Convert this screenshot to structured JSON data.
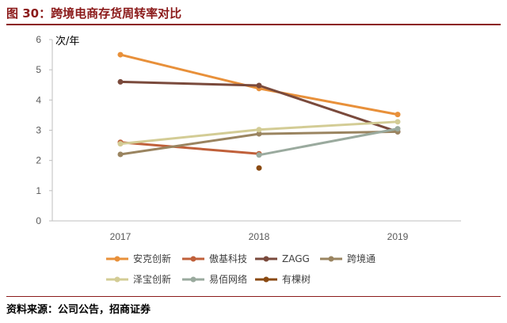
{
  "figure": {
    "title": "图 30：跨境电商存货周转率对比",
    "source": "资料来源：公司公告，招商证券"
  },
  "chart_data": {
    "type": "line",
    "title": "图 30：跨境电商存货周转率对比",
    "ylabel": "次/年",
    "xlabel": "",
    "categories": [
      "2017",
      "2018",
      "2019"
    ],
    "ylim": [
      0,
      6
    ],
    "yticks": [
      "0",
      "1",
      "2",
      "3",
      "4",
      "5",
      "6"
    ],
    "grid": false,
    "legend_position": "bottom",
    "series": [
      {
        "name": "安克创新",
        "color": "#e8903a",
        "values": [
          5.5,
          4.38,
          3.52
        ]
      },
      {
        "name": "傲基科技",
        "color": "#c0603a",
        "values": [
          2.6,
          2.22,
          null
        ]
      },
      {
        "name": "ZAGG",
        "color": "#7a4a3c",
        "values": [
          4.6,
          4.48,
          2.95
        ]
      },
      {
        "name": "跨境通",
        "color": "#9a8460",
        "values": [
          2.2,
          2.88,
          2.95
        ]
      },
      {
        "name": "泽宝创新",
        "color": "#d3cc95",
        "values": [
          2.55,
          3.02,
          3.28
        ]
      },
      {
        "name": "易佰网络",
        "color": "#9aaa9e",
        "values": [
          null,
          2.18,
          3.05
        ]
      },
      {
        "name": "有棵树",
        "color": "#8a4a12",
        "values": [
          null,
          1.75,
          null
        ]
      }
    ]
  }
}
